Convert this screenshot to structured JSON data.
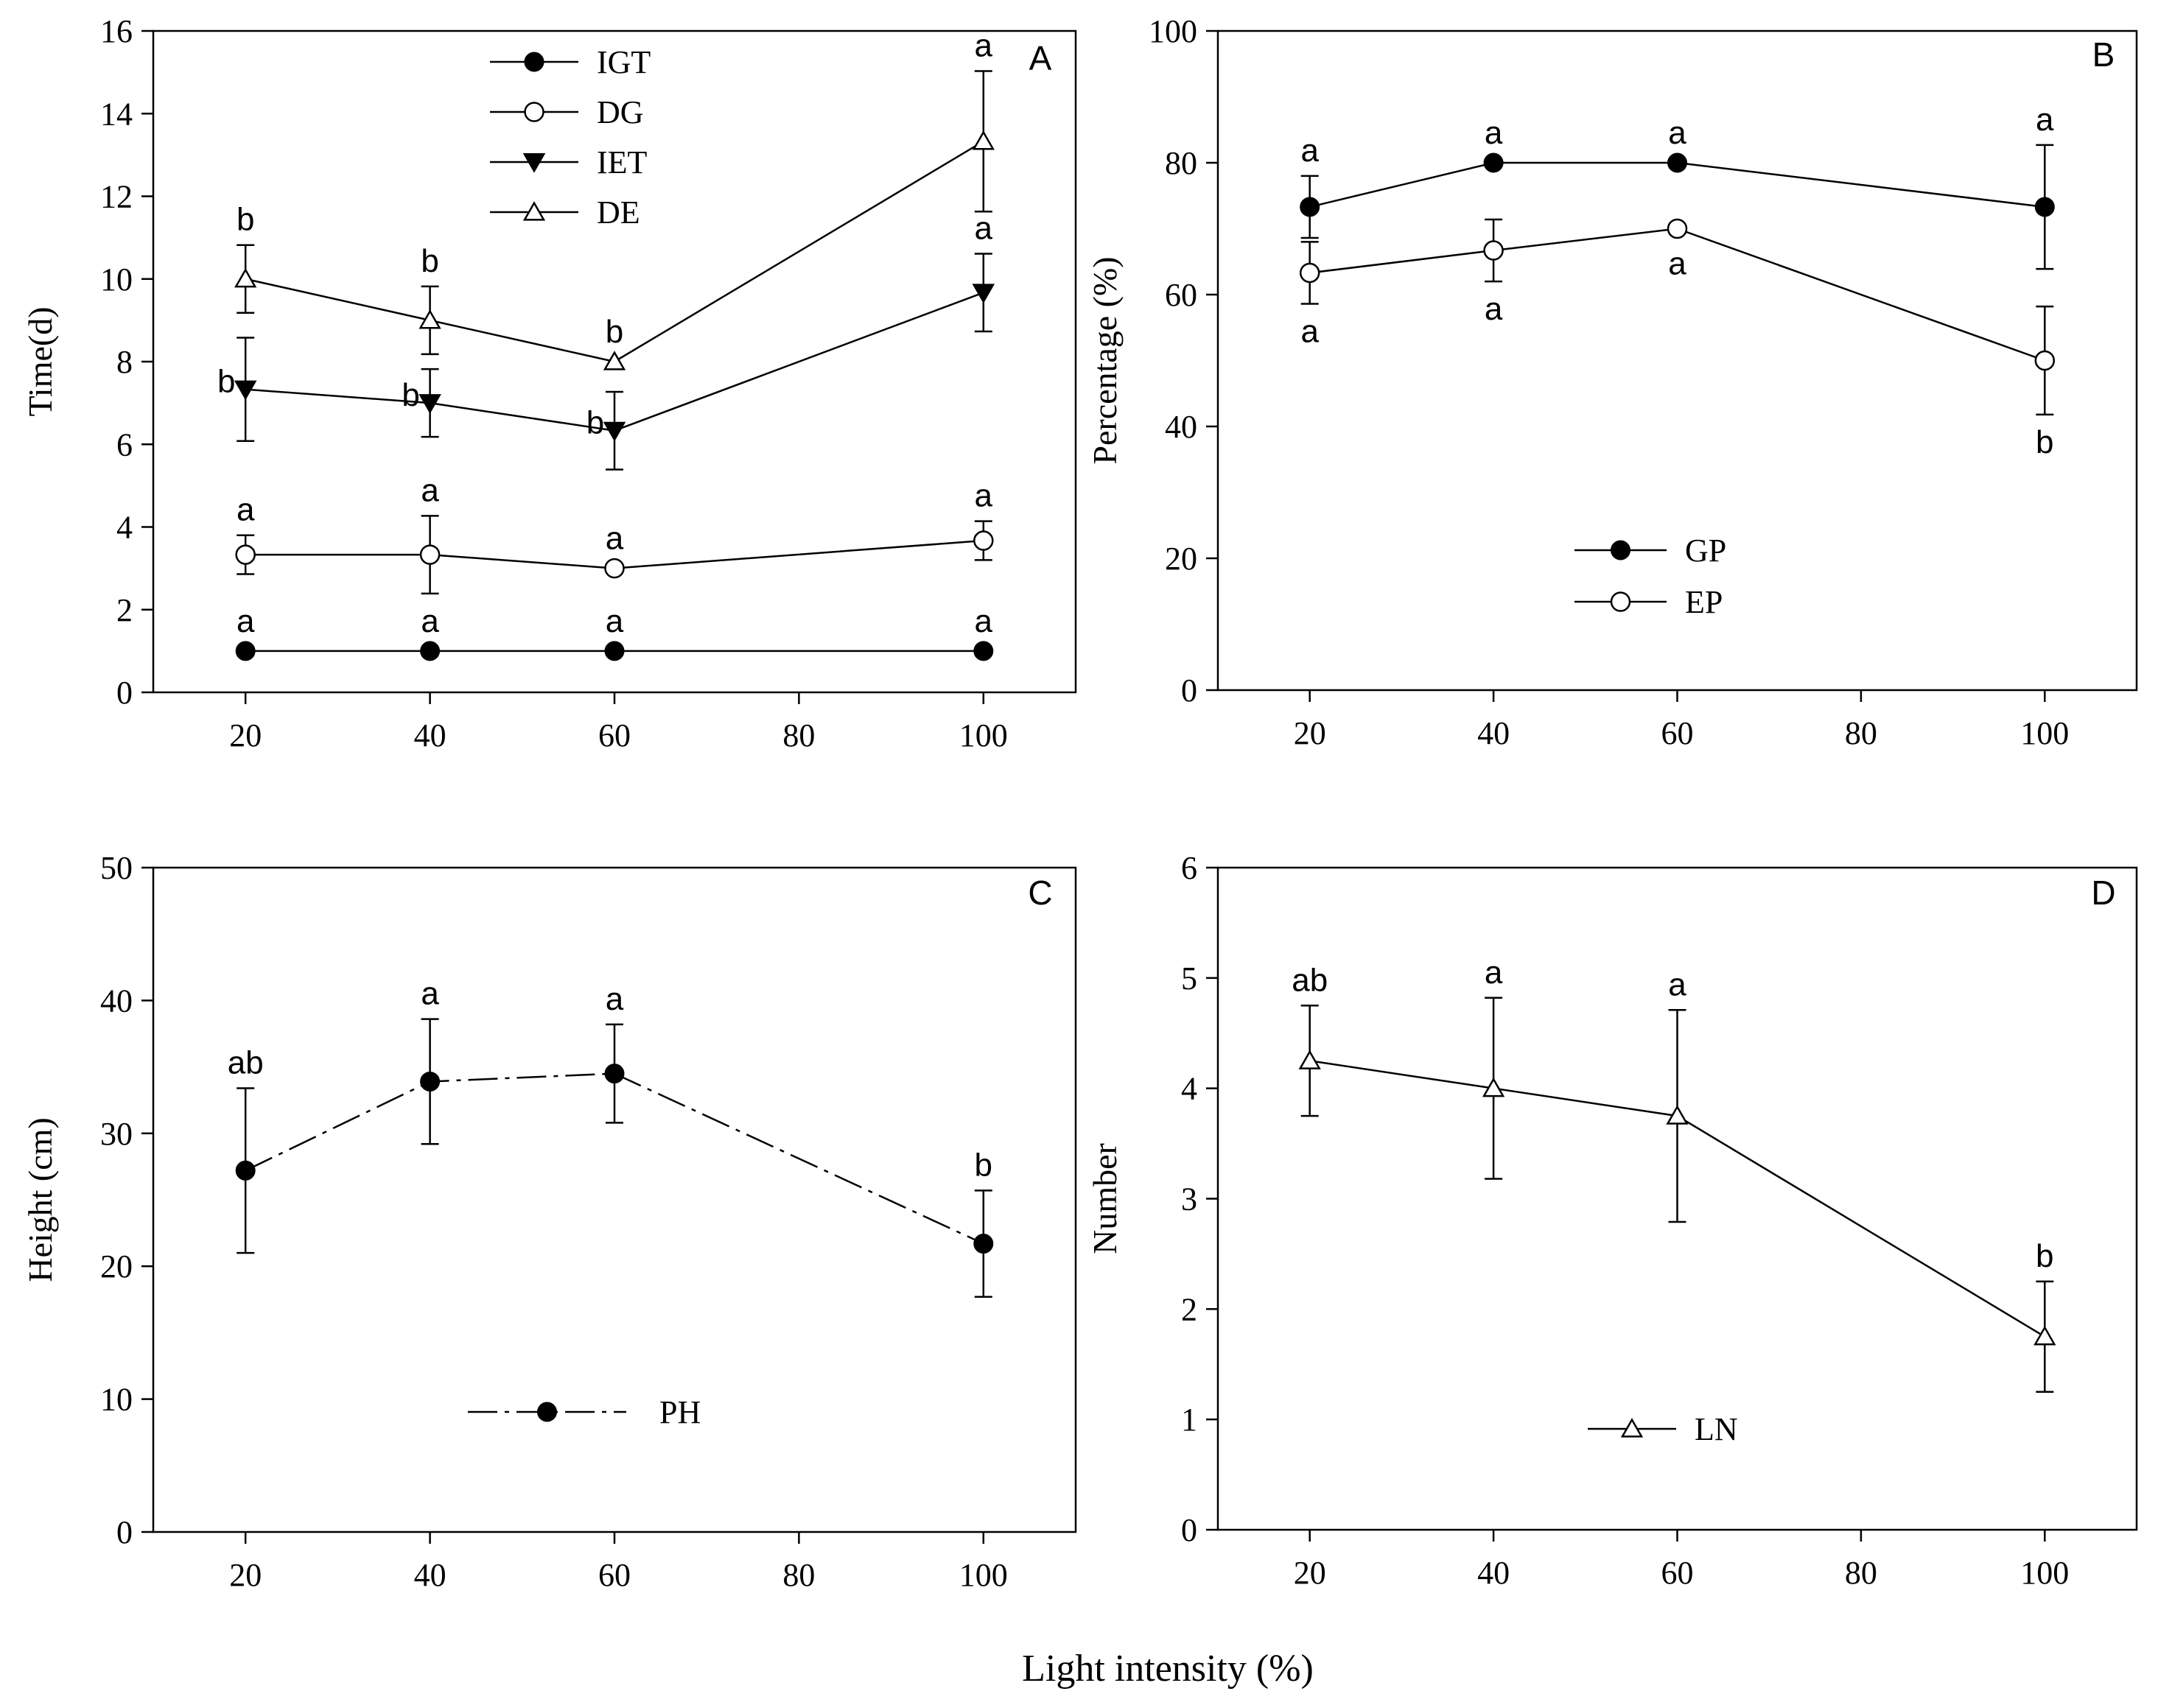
{
  "figure": {
    "xlabel": "Light intensity (%)"
  },
  "chart_data": [
    {
      "panel": "A",
      "type": "line",
      "x": [
        20,
        40,
        60,
        100
      ],
      "xticks": [
        20,
        40,
        60,
        80,
        100
      ],
      "xlim": [
        10,
        110
      ],
      "ylabel": "Time(d)",
      "ylim": [
        0,
        16
      ],
      "yticks": [
        0,
        2,
        4,
        6,
        8,
        10,
        12,
        14,
        16
      ],
      "legend_position": "top-center",
      "series": [
        {
          "name": "IGT",
          "marker": "circle-filled",
          "values": [
            1,
            1,
            1,
            1
          ],
          "errors": [
            0,
            0,
            0,
            0
          ],
          "letters": [
            "a",
            "a",
            "a",
            "a"
          ],
          "letter_pos": [
            "above",
            "above",
            "above",
            "above"
          ]
        },
        {
          "name": "DG",
          "marker": "circle-open",
          "values": [
            3.33,
            3.33,
            3.0,
            3.67
          ],
          "errors": [
            0.47,
            0.94,
            0,
            0.47
          ],
          "letters": [
            "a",
            "a",
            "a",
            "a"
          ],
          "letter_pos": [
            "above",
            "above",
            "above",
            "above"
          ]
        },
        {
          "name": "IET",
          "marker": "triangle-down-filled",
          "values": [
            7.33,
            7.0,
            6.33,
            9.67
          ],
          "errors": [
            1.25,
            0.82,
            0.94,
            0.94
          ],
          "letters": [
            "b",
            "b",
            "b",
            "a"
          ],
          "letter_pos": [
            "left",
            "left",
            "left",
            "above"
          ]
        },
        {
          "name": "DE",
          "marker": "triangle-up-open",
          "values": [
            10.0,
            9.0,
            8.0,
            13.33
          ],
          "errors": [
            0.82,
            0.82,
            0,
            1.7
          ],
          "letters": [
            "b",
            "b",
            "b",
            "a"
          ],
          "letter_pos": [
            "above",
            "above",
            "above",
            "above"
          ]
        }
      ]
    },
    {
      "panel": "B",
      "type": "line",
      "x": [
        20,
        40,
        60,
        100
      ],
      "xticks": [
        20,
        40,
        60,
        80,
        100
      ],
      "xlim": [
        10,
        110
      ],
      "ylabel": "Percentage (%)",
      "ylim": [
        0,
        100
      ],
      "yticks": [
        0,
        20,
        40,
        60,
        80,
        100
      ],
      "legend_position": "bottom-center",
      "series": [
        {
          "name": "GP",
          "marker": "circle-filled",
          "values": [
            73.3,
            80,
            80,
            73.3
          ],
          "errors": [
            4.7,
            0,
            0,
            9.4
          ],
          "letters": [
            "a",
            "a",
            "a",
            "a"
          ],
          "letter_pos": [
            "above",
            "above",
            "above",
            "above"
          ]
        },
        {
          "name": "EP",
          "marker": "circle-open",
          "values": [
            63.3,
            66.7,
            70,
            50
          ],
          "errors": [
            4.7,
            4.7,
            0,
            8.2
          ],
          "letters": [
            "a",
            "a",
            "a",
            "b"
          ],
          "letter_pos": [
            "below",
            "below",
            "below",
            "below"
          ]
        }
      ]
    },
    {
      "panel": "C",
      "type": "line",
      "x": [
        20,
        40,
        60,
        100
      ],
      "xticks": [
        20,
        40,
        60,
        80,
        100
      ],
      "xlim": [
        10,
        110
      ],
      "ylabel": "Height (cm)",
      "ylim": [
        0,
        50
      ],
      "yticks": [
        0,
        10,
        20,
        30,
        40,
        50
      ],
      "legend_position": "bottom-center",
      "series": [
        {
          "name": "PH",
          "marker": "circle-filled",
          "dash": "dashdot",
          "values": [
            27.2,
            33.9,
            34.5,
            21.7
          ],
          "errors": [
            6.2,
            4.7,
            3.7,
            4.0
          ],
          "letters": [
            "ab",
            "a",
            "a",
            "b"
          ],
          "letter_pos": [
            "above",
            "above",
            "above",
            "above"
          ]
        }
      ]
    },
    {
      "panel": "D",
      "type": "line",
      "x": [
        20,
        40,
        60,
        100
      ],
      "xticks": [
        20,
        40,
        60,
        80,
        100
      ],
      "xlim": [
        10,
        110
      ],
      "ylabel": "Number",
      "ylim": [
        0,
        6
      ],
      "yticks": [
        0,
        1,
        2,
        3,
        4,
        5,
        6
      ],
      "legend_position": "bottom-center",
      "series": [
        {
          "name": "LN",
          "marker": "triangle-up-open",
          "values": [
            4.25,
            4.0,
            3.75,
            1.75
          ],
          "errors": [
            0.5,
            0.82,
            0.96,
            0.5
          ],
          "letters": [
            "ab",
            "a",
            "a",
            "b"
          ],
          "letter_pos": [
            "above",
            "above",
            "above",
            "above"
          ]
        }
      ]
    }
  ]
}
